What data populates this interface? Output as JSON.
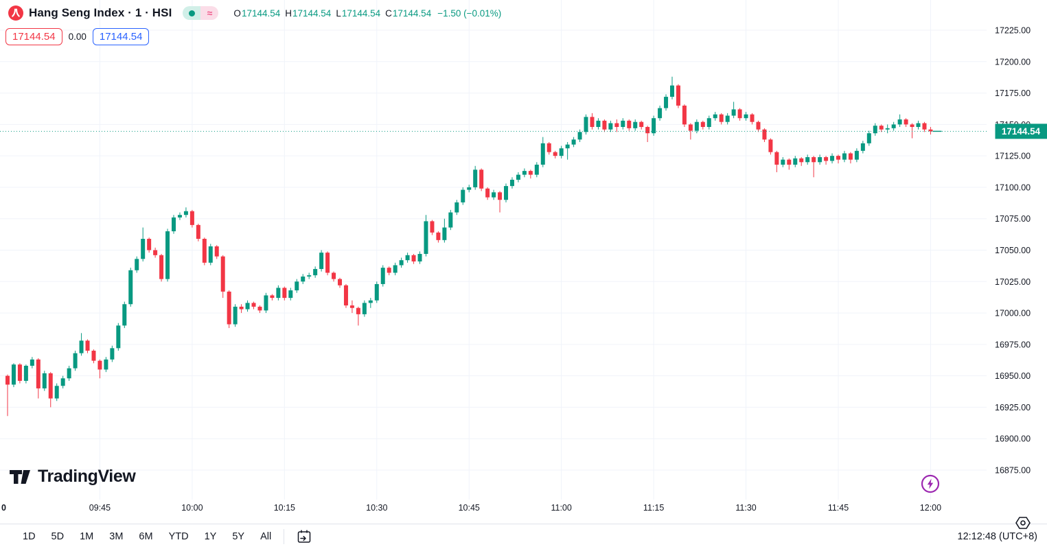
{
  "colors": {
    "up": "#089981",
    "down": "#f23645",
    "blue": "#2962ff",
    "dark_text": "#131722",
    "grid": "#f0f3fa",
    "border": "#e0e3eb",
    "price_label_bg": "#089981",
    "price_label_text": "#ffffff",
    "flash_purple": "#9c27b0",
    "pill_green_bg": "#d1efe8",
    "pill_pink_bg": "#fbdde8",
    "pill_pink_fg": "#ef5b8c"
  },
  "header": {
    "title": "Hang Seng Index · 1 · HSI",
    "status_pill": {
      "approx_symbol": "≈"
    },
    "ohlc": {
      "open_label": "O",
      "open": "17144.54",
      "high_label": "H",
      "high": "17144.54",
      "low_label": "L",
      "low": "17144.54",
      "close_label": "C",
      "close": "17144.54",
      "change": "−1.50 (−0.01%)"
    }
  },
  "price_row": {
    "red_box": "17144.54",
    "middle": "0.00",
    "blue_box": "17144.54"
  },
  "watermark": {
    "text": "TradingView"
  },
  "toolbar": {
    "ranges": [
      "1D",
      "5D",
      "1M",
      "3M",
      "6M",
      "YTD",
      "1Y",
      "5Y",
      "All"
    ],
    "timestamp": "12:12:48 (UTC+8)"
  },
  "icons": {
    "symbol_logo": "hsi-red-circle-logo",
    "status_dot": "market-status-dot-icon",
    "approx": "delayed-data-approx-icon",
    "watermark_logo": "tradingview-logo-icon",
    "flash": "instant-data-flash-icon",
    "hexagon": "price-scale-settings-icon",
    "calendar": "go-to-date-calendar-icon"
  },
  "chart_data": {
    "type": "candlestick",
    "title": "Hang Seng Index",
    "symbol": "HSI",
    "interval": "1",
    "start_time": "09:30",
    "interval_minutes": 1,
    "last_price": 17144.54,
    "last_price_label": "17144.54",
    "y_axis": {
      "min": 16875,
      "max": 17225,
      "grid_step": 25
    },
    "y_ticks": [
      {
        "value": 17225,
        "label": "17225.00"
      },
      {
        "value": 17200,
        "label": "17200.00"
      },
      {
        "value": 17175,
        "label": "17175.00"
      },
      {
        "value": 17150,
        "label": "17150.00"
      },
      {
        "value": 17125,
        "label": "17125.00"
      },
      {
        "value": 17100,
        "label": "17100.00"
      },
      {
        "value": 17075,
        "label": "17075.00"
      },
      {
        "value": 17050,
        "label": "17050.00"
      },
      {
        "value": 17025,
        "label": "17025.00"
      },
      {
        "value": 17000,
        "label": "17000.00"
      },
      {
        "value": 16975,
        "label": "16975.00"
      },
      {
        "value": 16950,
        "label": "16950.00"
      },
      {
        "value": 16925,
        "label": "16925.00"
      },
      {
        "value": 16900,
        "label": "16900.00"
      },
      {
        "value": 16875,
        "label": "16875.00"
      }
    ],
    "x_ticks": [
      {
        "label": "0",
        "minute": 0,
        "edge": true
      },
      {
        "label": "09:45",
        "minute": 15
      },
      {
        "label": "10:00",
        "minute": 30
      },
      {
        "label": "10:15",
        "minute": 45
      },
      {
        "label": "10:30",
        "minute": 60
      },
      {
        "label": "10:45",
        "minute": 75
      },
      {
        "label": "11:00",
        "minute": 90
      },
      {
        "label": "11:15",
        "minute": 105
      },
      {
        "label": "11:30",
        "minute": 120
      },
      {
        "label": "11:45",
        "minute": 135
      },
      {
        "label": "12:00",
        "minute": 150
      }
    ],
    "candles": [
      [
        16950,
        16951,
        16918,
        16943
      ],
      [
        16943,
        16960,
        16941,
        16959
      ],
      [
        16959,
        16960,
        16944,
        16946
      ],
      [
        16946,
        16959,
        16944,
        16958
      ],
      [
        16958,
        16965,
        16956,
        16963
      ],
      [
        16963,
        16964,
        16932,
        16940
      ],
      [
        16940,
        16954,
        16938,
        16952
      ],
      [
        16952,
        16953,
        16925,
        16932
      ],
      [
        16932,
        16944,
        16930,
        16942
      ],
      [
        16942,
        16950,
        16940,
        16948
      ],
      [
        16948,
        16958,
        16946,
        16956
      ],
      [
        16956,
        16970,
        16954,
        16968
      ],
      [
        16968,
        16984,
        16966,
        16978
      ],
      [
        16978,
        16979,
        16968,
        16970
      ],
      [
        16970,
        16971,
        16960,
        16962
      ],
      [
        16962,
        16963,
        16948,
        16955
      ],
      [
        16955,
        16965,
        16953,
        16963
      ],
      [
        16963,
        16974,
        16961,
        16972
      ],
      [
        16972,
        16992,
        16970,
        16990
      ],
      [
        16990,
        17009,
        16988,
        17007
      ],
      [
        17007,
        17036,
        17005,
        17034
      ],
      [
        17034,
        17045,
        17032,
        17043
      ],
      [
        17043,
        17068,
        17041,
        17059
      ],
      [
        17059,
        17060,
        17048,
        17050
      ],
      [
        17050,
        17052,
        17044,
        17046
      ],
      [
        17046,
        17047,
        17025,
        17027
      ],
      [
        17027,
        17067,
        17025,
        17065
      ],
      [
        17065,
        17078,
        17063,
        17076
      ],
      [
        17076,
        17080,
        17074,
        17078
      ],
      [
        17078,
        17084,
        17076,
        17081
      ],
      [
        17081,
        17082,
        17068,
        17070
      ],
      [
        17070,
        17071,
        17057,
        17059
      ],
      [
        17059,
        17060,
        17038,
        17040
      ],
      [
        17040,
        17055,
        17038,
        17053
      ],
      [
        17053,
        17054,
        17043,
        17045
      ],
      [
        17045,
        17046,
        17012,
        17017
      ],
      [
        17017,
        17018,
        16988,
        16991
      ],
      [
        16991,
        17007,
        16989,
        17005
      ],
      [
        17005,
        17007,
        17000,
        17003
      ],
      [
        17003,
        17010,
        17001,
        17008
      ],
      [
        17008,
        17009,
        17003,
        17005
      ],
      [
        17005,
        17006,
        17000,
        17002
      ],
      [
        17002,
        17016,
        17000,
        17014
      ],
      [
        17014,
        17015,
        17010,
        17012
      ],
      [
        17012,
        17022,
        17010,
        17020
      ],
      [
        17020,
        17021,
        17010,
        17012
      ],
      [
        17012,
        17020,
        17010,
        17018
      ],
      [
        17018,
        17027,
        17016,
        17025
      ],
      [
        17025,
        17031,
        17023,
        17029
      ],
      [
        17029,
        17032,
        17027,
        17030
      ],
      [
        17030,
        17037,
        17028,
        17035
      ],
      [
        17035,
        17050,
        17033,
        17048
      ],
      [
        17048,
        17049,
        17030,
        17032
      ],
      [
        17032,
        17033,
        17025,
        17027
      ],
      [
        17027,
        17028,
        17020,
        17022
      ],
      [
        17022,
        17023,
        17004,
        17006
      ],
      [
        17006,
        17010,
        17000,
        17004
      ],
      [
        17004,
        17005,
        16990,
        16999
      ],
      [
        16999,
        17010,
        16997,
        17008
      ],
      [
        17008,
        17012,
        17004,
        17010
      ],
      [
        17010,
        17025,
        17008,
        17023
      ],
      [
        17023,
        17038,
        17021,
        17036
      ],
      [
        17036,
        17037,
        17030,
        17032
      ],
      [
        17032,
        17040,
        17030,
        17038
      ],
      [
        17038,
        17044,
        17036,
        17042
      ],
      [
        17042,
        17048,
        17040,
        17046
      ],
      [
        17046,
        17047,
        17039,
        17041
      ],
      [
        17041,
        17049,
        17039,
        17047
      ],
      [
        17047,
        17078,
        17045,
        17073
      ],
      [
        17073,
        17074,
        17062,
        17064
      ],
      [
        17064,
        17065,
        17056,
        17058
      ],
      [
        17058,
        17075,
        17056,
        17068
      ],
      [
        17068,
        17082,
        17066,
        17080
      ],
      [
        17080,
        17090,
        17078,
        17088
      ],
      [
        17088,
        17100,
        17086,
        17098
      ],
      [
        17098,
        17102,
        17096,
        17100
      ],
      [
        17100,
        17117,
        17098,
        17114
      ],
      [
        17114,
        17115,
        17097,
        17099
      ],
      [
        17099,
        17100,
        17090,
        17092
      ],
      [
        17092,
        17098,
        17090,
        17096
      ],
      [
        17096,
        17097,
        17080,
        17090
      ],
      [
        17090,
        17103,
        17088,
        17101
      ],
      [
        17101,
        17108,
        17099,
        17106
      ],
      [
        17106,
        17112,
        17104,
        17110
      ],
      [
        17110,
        17115,
        17108,
        17113
      ],
      [
        17113,
        17114,
        17107,
        17110
      ],
      [
        17110,
        17120,
        17108,
        17118
      ],
      [
        17118,
        17140,
        17116,
        17135
      ],
      [
        17135,
        17136,
        17126,
        17128
      ],
      [
        17128,
        17129,
        17123,
        17125
      ],
      [
        17125,
        17133,
        17123,
        17131
      ],
      [
        17131,
        17136,
        17122,
        17134
      ],
      [
        17134,
        17140,
        17132,
        17138
      ],
      [
        17138,
        17146,
        17136,
        17144
      ],
      [
        17144,
        17158,
        17142,
        17156
      ],
      [
        17156,
        17159,
        17146,
        17148
      ],
      [
        17148,
        17155,
        17146,
        17153
      ],
      [
        17153,
        17154,
        17144,
        17146
      ],
      [
        17146,
        17153,
        17144,
        17151
      ],
      [
        17151,
        17154,
        17144,
        17148
      ],
      [
        17148,
        17155,
        17146,
        17153
      ],
      [
        17153,
        17154,
        17145,
        17147
      ],
      [
        17147,
        17154,
        17145,
        17152
      ],
      [
        17152,
        17153,
        17146,
        17148
      ],
      [
        17148,
        17149,
        17136,
        17143
      ],
      [
        17143,
        17157,
        17141,
        17155
      ],
      [
        17155,
        17165,
        17153,
        17163
      ],
      [
        17163,
        17174,
        17161,
        17172
      ],
      [
        17172,
        17188,
        17170,
        17181
      ],
      [
        17181,
        17182,
        17163,
        17165
      ],
      [
        17165,
        17166,
        17148,
        17150
      ],
      [
        17150,
        17151,
        17138,
        17145
      ],
      [
        17145,
        17154,
        17143,
        17152
      ],
      [
        17152,
        17153,
        17146,
        17148
      ],
      [
        17148,
        17157,
        17146,
        17155
      ],
      [
        17155,
        17160,
        17153,
        17158
      ],
      [
        17158,
        17159,
        17150,
        17152
      ],
      [
        17152,
        17159,
        17150,
        17157
      ],
      [
        17157,
        17168,
        17155,
        17162
      ],
      [
        17162,
        17163,
        17153,
        17155
      ],
      [
        17155,
        17160,
        17153,
        17158
      ],
      [
        17158,
        17159,
        17150,
        17152
      ],
      [
        17152,
        17153,
        17144,
        17146
      ],
      [
        17146,
        17147,
        17136,
        17138
      ],
      [
        17138,
        17139,
        17126,
        17128
      ],
      [
        17128,
        17129,
        17112,
        17118
      ],
      [
        17118,
        17124,
        17116,
        17122
      ],
      [
        17122,
        17123,
        17114,
        17118
      ],
      [
        17118,
        17125,
        17116,
        17123
      ],
      [
        17123,
        17124,
        17117,
        17120
      ],
      [
        17120,
        17126,
        17118,
        17124
      ],
      [
        17124,
        17125,
        17108,
        17120
      ],
      [
        17120,
        17126,
        17118,
        17124
      ],
      [
        17124,
        17125,
        17118,
        17121
      ],
      [
        17121,
        17127,
        17119,
        17125
      ],
      [
        17125,
        17126,
        17119,
        17122
      ],
      [
        17122,
        17129,
        17120,
        17127
      ],
      [
        17127,
        17128,
        17119,
        17122
      ],
      [
        17122,
        17131,
        17120,
        17129
      ],
      [
        17129,
        17137,
        17127,
        17135
      ],
      [
        17135,
        17145,
        17133,
        17143
      ],
      [
        17143,
        17151,
        17141,
        17149
      ],
      [
        17149,
        17150,
        17144,
        17146
      ],
      [
        17146,
        17150,
        17143,
        17147
      ],
      [
        17147,
        17152,
        17145,
        17150
      ],
      [
        17150,
        17158,
        17148,
        17154
      ],
      [
        17154,
        17155,
        17148,
        17150
      ],
      [
        17150,
        17151,
        17139,
        17148
      ],
      [
        17148,
        17153,
        17146,
        17151
      ],
      [
        17151,
        17152,
        17144,
        17146
      ],
      [
        17146,
        17148,
        17142,
        17144.54
      ]
    ]
  }
}
